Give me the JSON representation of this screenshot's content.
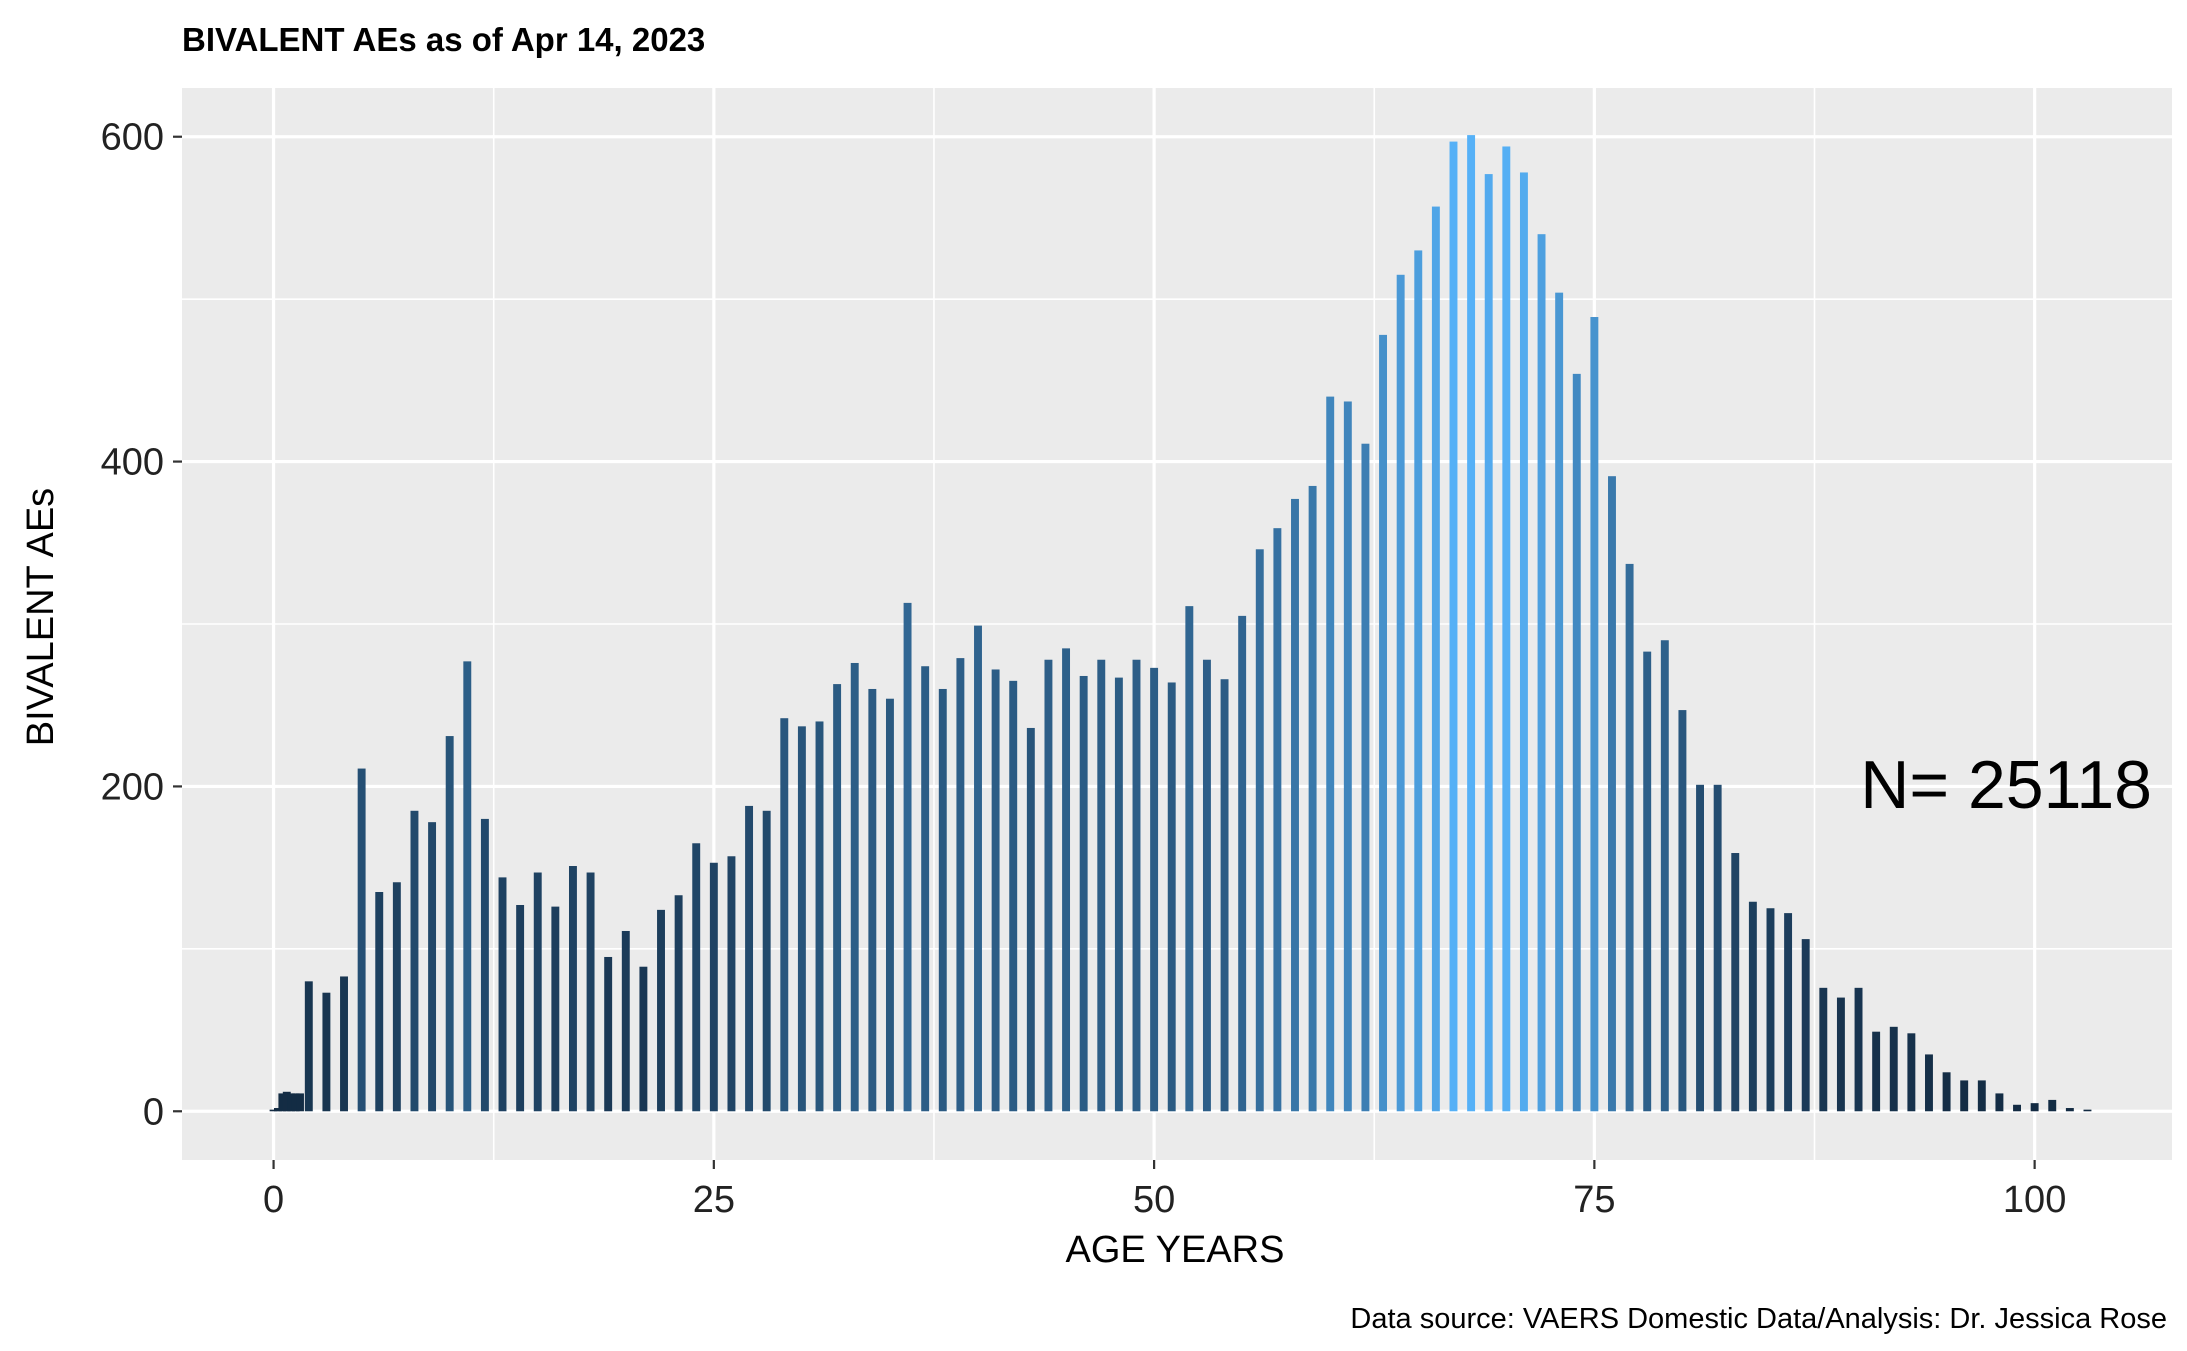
{
  "chart_data": {
    "type": "bar",
    "title": "BIVALENT AEs as of Apr 14, 2023",
    "xlabel": "AGE YEARS",
    "ylabel": "BIVALENT AEs",
    "xlim": [
      -5.2,
      107.8
    ],
    "ylim": [
      -30,
      630
    ],
    "x_ticks": [
      0,
      25,
      50,
      75,
      100
    ],
    "x_tick_labels": [
      "0",
      "25",
      "50",
      "75",
      "100"
    ],
    "y_ticks": [
      0,
      200,
      400,
      600
    ],
    "y_tick_labels": [
      "0",
      "200",
      "400",
      "600"
    ],
    "grid": true,
    "annotation": "N= 25118",
    "caption": "Data source: VAERS Domestic Data/Analysis: Dr. Jessica Rose",
    "color_scale": {
      "low": "#132B43",
      "high": "#56B1F7"
    },
    "x": [
      0,
      0.25,
      0.5,
      0.75,
      1,
      1.25,
      1.5,
      2,
      3,
      4,
      5,
      6,
      7,
      8,
      9,
      10,
      11,
      12,
      13,
      14,
      15,
      16,
      17,
      18,
      19,
      20,
      21,
      22,
      23,
      24,
      25,
      26,
      27,
      28,
      29,
      30,
      31,
      32,
      33,
      34,
      35,
      36,
      37,
      38,
      39,
      40,
      41,
      42,
      43,
      44,
      45,
      46,
      47,
      48,
      49,
      50,
      51,
      52,
      53,
      54,
      55,
      56,
      57,
      58,
      59,
      60,
      61,
      62,
      63,
      64,
      65,
      66,
      67,
      68,
      69,
      70,
      71,
      72,
      73,
      74,
      75,
      76,
      77,
      78,
      79,
      80,
      81,
      82,
      83,
      84,
      85,
      86,
      87,
      88,
      89,
      90,
      91,
      92,
      93,
      94,
      95,
      96,
      97,
      98,
      99,
      100,
      101,
      102,
      103
    ],
    "values": [
      1,
      2,
      11,
      12,
      11,
      11,
      11,
      80,
      73,
      83,
      211,
      135,
      141,
      185,
      178,
      231,
      277,
      180,
      144,
      127,
      147,
      126,
      151,
      147,
      95,
      111,
      89,
      124,
      133,
      165,
      153,
      157,
      188,
      185,
      242,
      237,
      240,
      263,
      276,
      260,
      254,
      313,
      274,
      260,
      279,
      299,
      272,
      265,
      236,
      278,
      285,
      268,
      278,
      267,
      278,
      273,
      264,
      311,
      278,
      266,
      305,
      346,
      359,
      377,
      385,
      440,
      437,
      411,
      478,
      515,
      530,
      557,
      597,
      601,
      577,
      594,
      578,
      540,
      504,
      454,
      489,
      391,
      337,
      283,
      290,
      247,
      201,
      201,
      159,
      129,
      125,
      122,
      106,
      76,
      70,
      76,
      49,
      52,
      48,
      35,
      24,
      19,
      19,
      11,
      4,
      5,
      7,
      2,
      1
    ]
  }
}
